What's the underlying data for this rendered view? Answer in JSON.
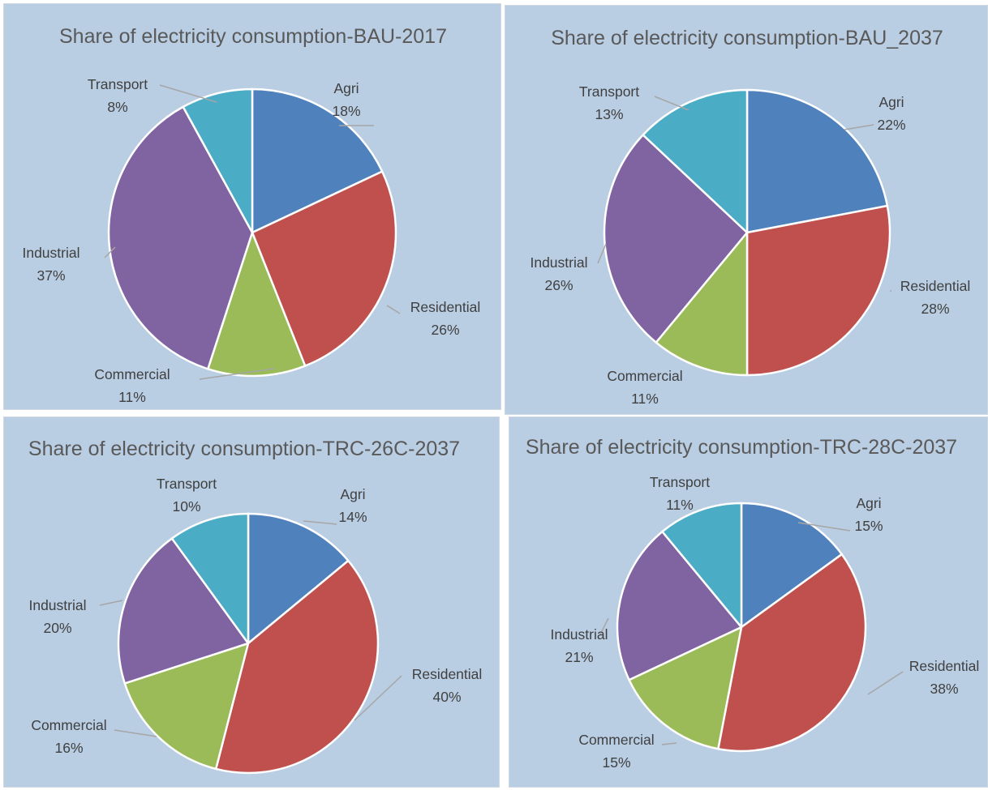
{
  "colors": {
    "Agri": "#4f81bd",
    "Residential": "#c0504d",
    "Commercial": "#9bbb59",
    "Industrial": "#8064a2",
    "Transport": "#4bacc6",
    "panel_background": "#b9cde3"
  },
  "chart_data": [
    {
      "type": "pie",
      "title": "Share of electricity consumption-BAU-2017",
      "categories": [
        "Agri",
        "Residential",
        "Commercial",
        "Industrial",
        "Transport"
      ],
      "values": [
        18,
        26,
        11,
        37,
        8
      ],
      "labels": [
        "18%",
        "26%",
        "11%",
        "37%",
        "8%"
      ]
    },
    {
      "type": "pie",
      "title": "Share of electricity consumption-BAU_2037",
      "categories": [
        "Agri",
        "Residential",
        "Commercial",
        "Industrial",
        "Transport"
      ],
      "values": [
        22,
        28,
        11,
        26,
        13
      ],
      "labels": [
        "22%",
        "28%",
        "11%",
        "26%",
        "13%"
      ]
    },
    {
      "type": "pie",
      "title": "Share of electricity consumption-TRC-26C-2037",
      "categories": [
        "Agri",
        "Residential",
        "Commercial",
        "Industrial",
        "Transport"
      ],
      "values": [
        14,
        40,
        16,
        20,
        10
      ],
      "labels": [
        "14%",
        "40%",
        "16%",
        "20%",
        "10%"
      ]
    },
    {
      "type": "pie",
      "title": "Share of electricity consumption-TRC-28C-2037",
      "categories": [
        "Agri",
        "Residential",
        "Commercial",
        "Industrial",
        "Transport"
      ],
      "values": [
        15,
        38,
        15,
        21,
        11
      ],
      "labels": [
        "15%",
        "38%",
        "15%",
        "21%",
        "11%"
      ]
    }
  ]
}
